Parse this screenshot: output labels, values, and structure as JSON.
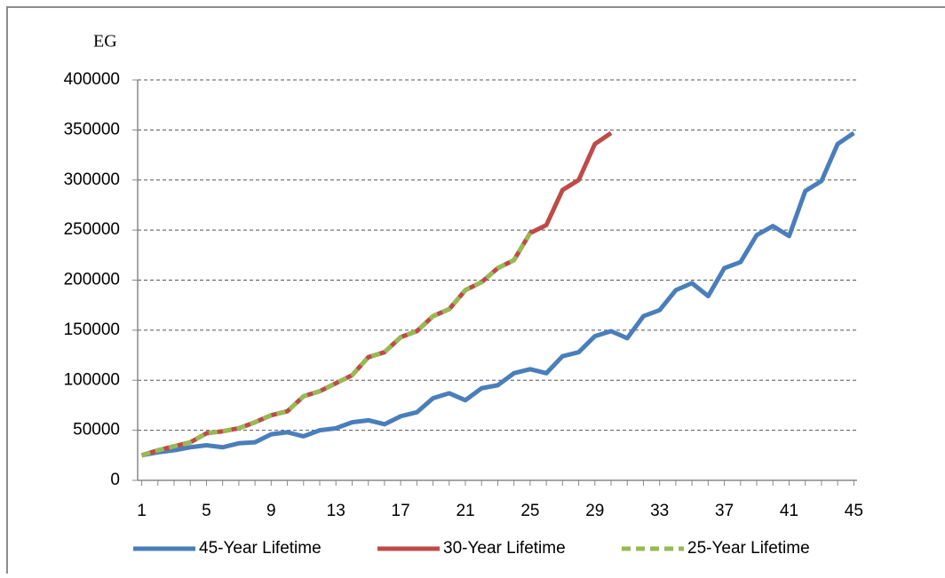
{
  "chart_data": {
    "type": "line",
    "y_label": "EG",
    "x": [
      1,
      2,
      3,
      4,
      5,
      6,
      7,
      8,
      9,
      10,
      11,
      12,
      13,
      14,
      15,
      16,
      17,
      18,
      19,
      20,
      21,
      22,
      23,
      24,
      25,
      26,
      27,
      28,
      29,
      30,
      31,
      32,
      33,
      34,
      35,
      36,
      37,
      38,
      39,
      40,
      41,
      42,
      43,
      44,
      45
    ],
    "xlim": [
      0.75,
      45.2
    ],
    "xticks": [
      1,
      5,
      9,
      13,
      17,
      21,
      25,
      29,
      33,
      37,
      41,
      45
    ],
    "ylim": [
      0,
      400000
    ],
    "yticks": [
      0,
      50000,
      100000,
      150000,
      200000,
      250000,
      300000,
      350000,
      400000
    ],
    "grid": true,
    "legend": "bottom",
    "series": [
      {
        "name": "45-Year Lifetime",
        "color": "#4a7ebb",
        "line_style": "solid",
        "values": [
          25000,
          28000,
          30000,
          33000,
          35000,
          33000,
          37000,
          38000,
          46000,
          48000,
          44000,
          50000,
          52000,
          58000,
          60000,
          56000,
          64000,
          68000,
          82000,
          87000,
          80000,
          92000,
          95000,
          107000,
          111000,
          107000,
          124000,
          128000,
          144000,
          149000,
          142000,
          164000,
          170000,
          190000,
          197000,
          184000,
          212000,
          218000,
          245000,
          254000,
          244000,
          289000,
          299000,
          336000,
          347000
        ]
      },
      {
        "name": "30-Year Lifetime",
        "color": "#be4b48",
        "line_style": "solid",
        "values": [
          25000,
          30000,
          34000,
          38000,
          47000,
          49000,
          52000,
          58000,
          65000,
          69000,
          84000,
          89000,
          97000,
          105000,
          123000,
          128000,
          143000,
          149000,
          164000,
          171000,
          190000,
          198000,
          212000,
          220000,
          247000,
          255000,
          290000,
          300000,
          336000,
          347000,
          null,
          null,
          null,
          null,
          null,
          null,
          null,
          null,
          null,
          null,
          null,
          null,
          null,
          null,
          null
        ]
      },
      {
        "name": "25-Year Lifetime",
        "color": "#98b954",
        "line_style": "dashed",
        "values": [
          25000,
          30000,
          34000,
          38000,
          47000,
          49000,
          52000,
          58000,
          65000,
          69000,
          84000,
          89000,
          97000,
          105000,
          123000,
          128000,
          143000,
          149000,
          164000,
          171000,
          190000,
          198000,
          212000,
          220000,
          247000,
          null,
          null,
          null,
          null,
          null,
          null,
          null,
          null,
          null,
          null,
          null,
          null,
          null,
          null,
          null,
          null,
          null,
          null,
          null,
          null
        ]
      }
    ]
  }
}
